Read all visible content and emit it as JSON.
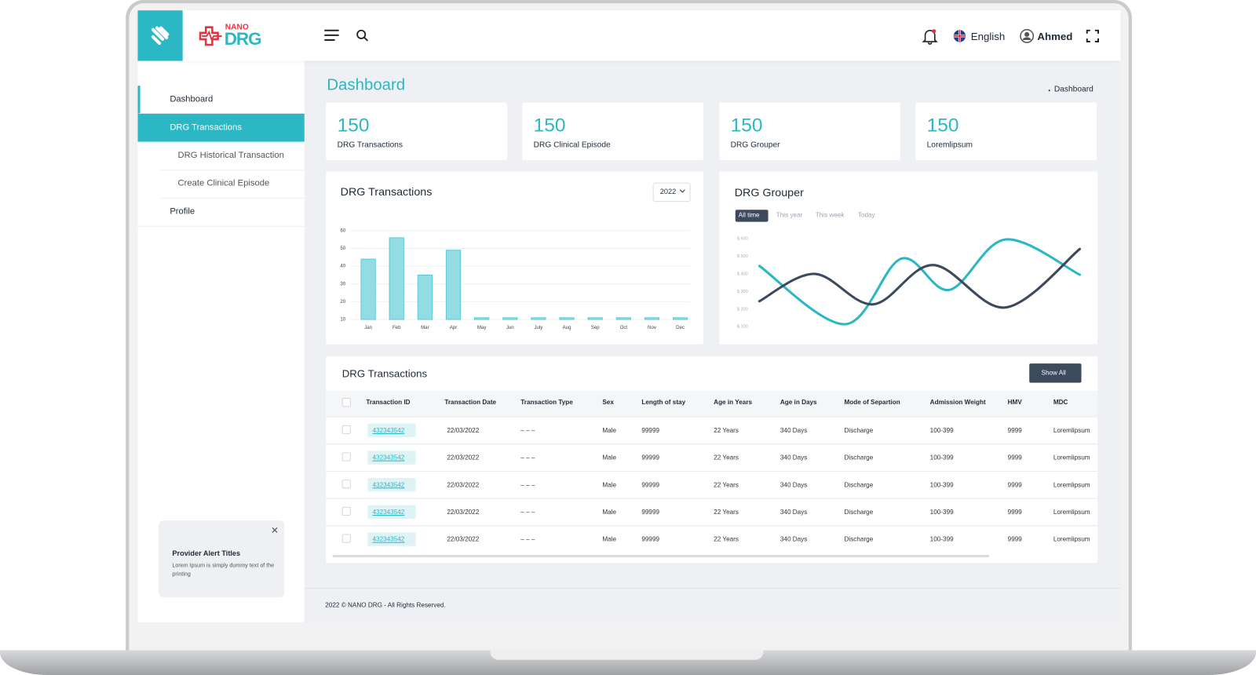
{
  "brand": {
    "small": "NANO",
    "name": "DRG"
  },
  "header": {
    "language": "English",
    "user": "Ahmed"
  },
  "sidebar": {
    "items": [
      {
        "label": "Dashboard"
      },
      {
        "label": "DRG Transactions",
        "children": [
          "DRG Historical Transaction",
          "Create Clinical Episode"
        ]
      },
      {
        "label": "Profile"
      }
    ]
  },
  "alert": {
    "title": "Provider Alert Titles",
    "text": "Lorem Ipsum is simply dummy text of the printing"
  },
  "page": {
    "title": "Dashboard",
    "breadcrumb": "Dashboard"
  },
  "cards": [
    {
      "value": 150,
      "label": "DRG Transactions"
    },
    {
      "value": 150,
      "label": "DRG Clinical Episode"
    },
    {
      "value": 150,
      "label": "DRG Grouper"
    },
    {
      "value": 150,
      "label": "Loremlipsum"
    }
  ],
  "chart_data": [
    {
      "type": "bar",
      "title": "DRG Transactions",
      "filter": "2022",
      "categories": [
        "Jan",
        "Feb",
        "Mar",
        "Apr",
        "May",
        "Jun",
        "July",
        "Aug",
        "Sep",
        "Oct",
        "Nov",
        "Dec"
      ],
      "values": [
        44,
        56,
        35,
        49,
        11,
        11,
        11,
        11,
        11,
        11,
        11,
        11
      ],
      "color": "#93dce3",
      "ylim": [
        10,
        60
      ],
      "yticks": [
        10,
        20,
        30,
        40,
        50,
        60
      ],
      "grid": true
    },
    {
      "type": "line",
      "title": "DRG Grouper",
      "tabs": [
        "All time",
        "This year",
        "This week",
        "Today"
      ],
      "active_tab": 0,
      "xlim": [
        0,
        400
      ],
      "ylim": [
        100,
        600
      ],
      "yticks": [
        {
          "value": 100,
          "label": "$ 100"
        },
        {
          "value": 200,
          "label": "$ 200"
        },
        {
          "value": 300,
          "label": "$ 300"
        },
        {
          "value": 400,
          "label": "$ 400"
        },
        {
          "value": 500,
          "label": "$ 500"
        },
        {
          "value": 600,
          "label": "$ 600"
        }
      ],
      "grid": false,
      "series": [
        {
          "color": "#2bb7c4",
          "x": [
            0,
            107,
            177,
            237,
            307,
            400
          ],
          "values": [
            445,
            114,
            486,
            309,
            595,
            395
          ]
        },
        {
          "color": "#3d4a5c",
          "x": [
            0,
            69,
            142,
            217,
            307,
            400
          ],
          "values": [
            245,
            400,
            227,
            450,
            209,
            541
          ]
        }
      ]
    }
  ],
  "table": {
    "title": "DRG Transactions",
    "button": "Show All",
    "columns": [
      "Transaction ID",
      "Transaction Date",
      "Transaction Type",
      "Sex",
      "Length of stay",
      "Age in Years",
      "Age in Days",
      "Mode of Separtion",
      "Admission Weight",
      "HMV",
      "MDC"
    ],
    "rows": [
      [
        "432343542",
        "22/03/2022",
        "– – –",
        "Male",
        "99999",
        "22 Years",
        "340 Days",
        "Discharge",
        "100-399",
        "9999",
        "Loremlipsum"
      ],
      [
        "432343542",
        "22/03/2022",
        "– – –",
        "Male",
        "99999",
        "22 Years",
        "340 Days",
        "Discharge",
        "100-399",
        "9999",
        "Loremlipsum"
      ],
      [
        "432343542",
        "22/03/2022",
        "– – –",
        "Male",
        "99999",
        "22 Years",
        "340 Days",
        "Discharge",
        "100-399",
        "9999",
        "Loremlipsum"
      ],
      [
        "432343542",
        "22/03/2022",
        "– – –",
        "Male",
        "99999",
        "22 Years",
        "340 Days",
        "Discharge",
        "100-399",
        "9999",
        "Loremlipsum"
      ],
      [
        "432343542",
        "22/03/2022",
        "– – –",
        "Male",
        "99999",
        "22 Years",
        "340 Days",
        "Discharge",
        "100-399",
        "9999",
        "Loremlipsum"
      ]
    ]
  },
  "footer": "2022 © NANO DRG - All Rights Reserved."
}
